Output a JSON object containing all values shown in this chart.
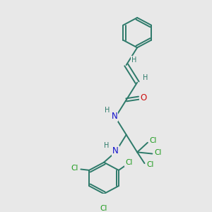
{
  "background_color": "#e8e8e8",
  "bond_color": "#2d7a6a",
  "N_color": "#1010cc",
  "O_color": "#cc1010",
  "Cl_color": "#1a9a1a",
  "H_color": "#2d7a6a",
  "figsize": [
    3.0,
    3.0
  ],
  "dpi": 100,
  "xlim": [
    0,
    10
  ],
  "ylim": [
    0,
    10
  ]
}
